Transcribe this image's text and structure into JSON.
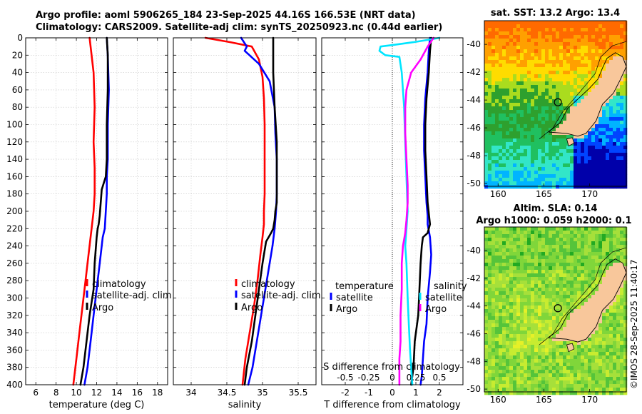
{
  "header": {
    "line1": "Argo profile: aoml 5906265_184 23-Sep-2025 44.16S 166.53E (NRT data)",
    "line2": "Climatology: CARS2009. Satellite-adj clim: synTS_20250923.nc (0.44d earlier)"
  },
  "copyright": "©IMOS 28-Sep-2025 11:40:17",
  "colors": {
    "climatology": "#ff0000",
    "satellite": "#0000ff",
    "argo": "#000000",
    "sat_diff_S": "#00e5ff",
    "argo_diff_S": "#ff00ff"
  },
  "chart_data": [
    {
      "id": "temperature-profile",
      "type": "line",
      "xlabel": "temperature (deg C)",
      "ylabel": "",
      "xlim": [
        5,
        19
      ],
      "ylim": [
        400,
        0
      ],
      "xticks": [
        6,
        8,
        10,
        12,
        14,
        16,
        18
      ],
      "yticks": [
        0,
        20,
        40,
        60,
        80,
        100,
        120,
        140,
        160,
        180,
        200,
        220,
        240,
        260,
        280,
        300,
        320,
        340,
        360,
        380,
        400
      ],
      "grid": true,
      "legend": {
        "position": "center-right",
        "entries": [
          "climatology",
          "satellite-adj. clim",
          "Argo"
        ]
      },
      "series": [
        {
          "name": "climatology",
          "color": "#ff0000",
          "x": [
            11.3,
            11.4,
            11.7,
            11.8,
            11.7,
            11.8,
            11.8,
            11.8,
            11.7,
            11.5,
            11.2,
            10.9,
            10.6,
            10.3,
            10.0,
            9.7
          ],
          "y": [
            0,
            10,
            40,
            80,
            120,
            150,
            160,
            180,
            200,
            220,
            250,
            280,
            310,
            340,
            370,
            400
          ]
        },
        {
          "name": "satellite-adj. clim",
          "color": "#0000ff",
          "x": [
            13.0,
            13.1,
            13.2,
            13.1,
            13.1,
            13.0,
            13.0,
            12.9,
            12.8,
            12.6,
            12.3,
            12.0,
            11.7,
            11.4,
            11.1,
            10.8
          ],
          "y": [
            0,
            20,
            60,
            100,
            140,
            160,
            180,
            200,
            220,
            230,
            260,
            290,
            320,
            350,
            380,
            400
          ]
        },
        {
          "name": "Argo",
          "color": "#000000",
          "x": [
            13.0,
            13.1,
            13.1,
            13.0,
            13.0,
            12.9,
            12.5,
            12.4,
            12.3,
            12.2,
            12.1,
            12.0,
            11.8,
            11.7,
            11.3,
            11.0,
            10.7,
            10.4
          ],
          "y": [
            0,
            20,
            60,
            100,
            140,
            160,
            175,
            190,
            205,
            215,
            220,
            230,
            260,
            290,
            320,
            350,
            380,
            400
          ]
        }
      ]
    },
    {
      "id": "salinity-profile",
      "type": "line",
      "xlabel": "salinity",
      "ylabel": "",
      "xlim": [
        33.75,
        35.75
      ],
      "ylim": [
        400,
        0
      ],
      "xticks": [
        34,
        34.5,
        35,
        35.5
      ],
      "grid": true,
      "legend": {
        "position": "center-right",
        "entries": [
          "climatology",
          "satellite-adj. clim",
          "Argo"
        ]
      },
      "series": [
        {
          "name": "climatology",
          "color": "#ff0000",
          "x": [
            34.2,
            34.55,
            34.85,
            34.95,
            35.0,
            35.02,
            35.03,
            35.03,
            35.03,
            35.02,
            35.02,
            35.0,
            34.97,
            34.93,
            34.88,
            34.82,
            34.76,
            34.72
          ],
          "y": [
            0,
            5,
            10,
            25,
            45,
            70,
            100,
            140,
            180,
            200,
            215,
            230,
            250,
            280,
            310,
            340,
            370,
            400
          ]
        },
        {
          "name": "satellite-adj. clim",
          "color": "#0000ff",
          "x": [
            34.7,
            34.78,
            34.75,
            34.95,
            35.1,
            35.17,
            35.18,
            35.2,
            35.2,
            35.19,
            35.17,
            35.14,
            35.1,
            35.04,
            34.98,
            34.92,
            34.86,
            34.8
          ],
          "y": [
            0,
            10,
            15,
            30,
            50,
            80,
            110,
            140,
            180,
            200,
            220,
            240,
            260,
            290,
            320,
            350,
            380,
            400
          ]
        },
        {
          "name": "Argo",
          "color": "#000000",
          "x": [
            35.15,
            35.15,
            35.17,
            35.2,
            35.2,
            35.2,
            35.18,
            35.17,
            35.15,
            35.12,
            35.05,
            35.0,
            34.95,
            34.9,
            34.85,
            34.78,
            34.75
          ],
          "y": [
            0,
            40,
            80,
            120,
            160,
            190,
            200,
            210,
            220,
            225,
            235,
            260,
            290,
            320,
            350,
            380,
            400
          ]
        }
      ]
    },
    {
      "id": "difference-profile",
      "type": "line",
      "xlabel": "T difference from climatology",
      "xlabel2": "S difference from climatology",
      "ylabel": "",
      "xlim": [
        -3,
        3
      ],
      "ylim": [
        400,
        0
      ],
      "xticks": [
        -2,
        -1,
        0,
        1,
        2
      ],
      "xticks2": [
        -0.5,
        -0.25,
        0,
        0.25,
        0.5
      ],
      "grid": true,
      "legend": {
        "position": "center",
        "temperature_title": "temperature",
        "salinity_title": "salinity",
        "entries_T": [
          "satellite",
          "Argo"
        ],
        "entries_S": [
          "satellite",
          "Argo"
        ]
      },
      "series": [
        {
          "name": "satellite (temperature)",
          "color": "#0000ff",
          "x": [
            1.6,
            1.55,
            1.5,
            1.4,
            1.35,
            1.35,
            1.4,
            1.45,
            1.5,
            1.5,
            1.6,
            1.65,
            1.6,
            1.5,
            1.45,
            1.35,
            1.3,
            1.25,
            1.2
          ],
          "y": [
            0,
            15,
            40,
            70,
            100,
            130,
            160,
            190,
            205,
            215,
            230,
            250,
            270,
            300,
            330,
            350,
            370,
            390,
            400
          ]
        },
        {
          "name": "Argo (temperature)",
          "color": "#000000",
          "x": [
            1.65,
            1.6,
            1.55,
            1.45,
            1.4,
            1.4,
            1.45,
            1.5,
            1.6,
            1.5,
            1.3,
            1.25,
            1.2,
            1.15,
            1.1,
            0.95,
            0.9,
            0.8
          ],
          "y": [
            0,
            15,
            40,
            70,
            100,
            130,
            160,
            190,
            215,
            225,
            230,
            240,
            260,
            290,
            320,
            350,
            380,
            400
          ]
        },
        {
          "name": "satellite (salinity)",
          "color": "#00e5ff",
          "x": [
            2.0,
            1.6,
            0.9,
            0.1,
            -0.5,
            -0.55,
            -0.3,
            0.3,
            0.4,
            0.5,
            0.55,
            0.6,
            0.65,
            0.6,
            0.55,
            0.6,
            0.65,
            0.7,
            0.75,
            0.8,
            0.85
          ],
          "y": [
            0,
            2,
            5,
            8,
            10,
            15,
            20,
            22,
            40,
            80,
            120,
            160,
            200,
            220,
            240,
            260,
            300,
            330,
            360,
            380,
            400
          ]
        },
        {
          "name": "Argo (salinity)",
          "color": "#ff00ff",
          "x": [
            1.75,
            1.5,
            1.2,
            0.8,
            0.6,
            0.55,
            0.55,
            0.6,
            0.65,
            0.65,
            0.6,
            0.55,
            0.45,
            0.4,
            0.4,
            0.35,
            0.35,
            0.3,
            0.3,
            0.3
          ],
          "y": [
            0,
            10,
            25,
            40,
            60,
            80,
            110,
            140,
            170,
            190,
            210,
            225,
            240,
            260,
            290,
            320,
            350,
            370,
            390,
            400
          ]
        }
      ]
    }
  ],
  "maps": [
    {
      "id": "sst-map",
      "type": "heatmap",
      "title": "sat. SST: 13.2 Argo: 13.4",
      "xticks": [
        160,
        165,
        170
      ],
      "yticks": [
        -40,
        -42,
        -44,
        -46,
        -48,
        -50
      ],
      "xlim": [
        158.5,
        174
      ],
      "ylim": [
        -50.2,
        -38.3
      ],
      "marker": {
        "lon": 166.53,
        "lat": -44.16
      },
      "color_scale": [
        "#0000aa",
        "#0044ff",
        "#00b4ff",
        "#32e6c8",
        "#20c060",
        "#2ea02e",
        "#aadc1e",
        "#ffdc00",
        "#ffa000",
        "#ff6a00"
      ]
    },
    {
      "id": "sla-map",
      "type": "heatmap",
      "title": "Altim. SLA: 0.14",
      "subtitle": "Argo h1000: 0.059 h2000: 0.1",
      "xticks": [
        160,
        165,
        170
      ],
      "yticks": [
        -40,
        -42,
        -44,
        -46,
        -48,
        -50
      ],
      "xlim": [
        158.5,
        174
      ],
      "ylim": [
        -50.2,
        -38.3
      ],
      "marker": {
        "lon": 166.53,
        "lat": -44.16
      },
      "color_scale": [
        "#22aa22",
        "#55c43a",
        "#80d63a",
        "#a6e03a",
        "#c8ec30",
        "#e6f028"
      ]
    }
  ]
}
